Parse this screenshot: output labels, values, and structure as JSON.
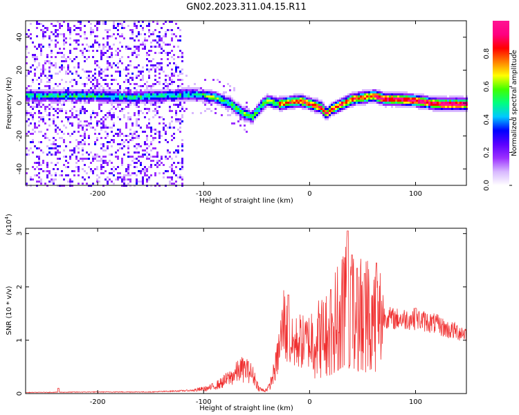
{
  "title": "GN02.2023.311.04.15.R11",
  "colors": {
    "snr_line": "#f03030",
    "axis": "#000000",
    "colormap": [
      "#ffffff",
      "#d8b8ff",
      "#9b30ff",
      "#5a00ff",
      "#0000ff",
      "#00c8ff",
      "#00ff80",
      "#40ff00",
      "#ffff00",
      "#ff8000",
      "#ff0000",
      "#ff0080",
      "#ff1493"
    ]
  },
  "chart_data": [
    {
      "type": "heatmap",
      "name": "spectrogram",
      "xlabel": "Height of straight line (km)",
      "ylabel": "Frequency (Hz)",
      "xlim": [
        -268,
        148
      ],
      "ylim": [
        -50,
        50
      ],
      "xticks": [
        -200,
        -100,
        0,
        100
      ],
      "yticks": [
        40,
        20,
        0,
        -20,
        -40
      ],
      "grid": false,
      "description_curve": {
        "x": [
          -260,
          -230,
          -200,
          -170,
          -140,
          -110,
          -90,
          -75,
          -65,
          -55,
          -50,
          -45,
          -40,
          -30,
          -20,
          -10,
          0,
          10,
          15,
          20,
          30,
          40,
          50,
          60,
          70,
          80,
          100,
          120,
          148
        ],
        "y": [
          5,
          5,
          5,
          4,
          5,
          6,
          4,
          0,
          -5,
          -8,
          -4,
          0,
          2,
          0,
          1,
          2,
          0,
          -2,
          -6,
          -3,
          0,
          3,
          4,
          5,
          3,
          3,
          2,
          0,
          0
        ]
      },
      "colorbar": {
        "label": "Normalized spectral amplitude",
        "ticks": [
          "0.0",
          "0.2",
          "0.4",
          "0.6",
          "0.8"
        ],
        "range": [
          0,
          1
        ]
      }
    },
    {
      "type": "line",
      "name": "snr",
      "xlabel": "Height of straight line (km)",
      "ylabel": "SNR (10 * v/v)",
      "multiplier_label": "(x10",
      "multiplier_exp": "4",
      "xlim": [
        -268,
        148
      ],
      "ylim": [
        0,
        3.1
      ],
      "xticks": [
        -200,
        -100,
        0,
        100
      ],
      "yticks": [
        0,
        1,
        2,
        3
      ],
      "envelope": {
        "x": [
          -268,
          -200,
          -150,
          -110,
          -95,
          -85,
          -75,
          -65,
          -58,
          -52,
          -48,
          -43,
          -38,
          -32,
          -28,
          -24,
          -20,
          -15,
          -10,
          -5,
          0,
          10,
          20,
          30,
          35,
          40,
          45,
          50,
          55,
          60,
          70,
          80,
          90,
          100,
          110,
          120,
          130,
          148
        ],
        "y": [
          0.02,
          0.03,
          0.03,
          0.06,
          0.1,
          0.18,
          0.3,
          0.45,
          0.45,
          0.3,
          0.1,
          0.05,
          0.12,
          0.5,
          0.9,
          1.4,
          0.95,
          0.9,
          1.0,
          0.95,
          1.0,
          1.05,
          1.15,
          1.6,
          1.9,
          1.6,
          1.5,
          1.5,
          1.5,
          1.45,
          1.45,
          1.4,
          1.4,
          1.4,
          1.35,
          1.3,
          1.2,
          1.13
        ]
      },
      "peaks": [
        {
          "x": -237,
          "y": 0.1
        },
        {
          "x": -58,
          "y": 0.6
        },
        {
          "x": -20,
          "y": 1.85
        },
        {
          "x": 20,
          "y": 1.95
        },
        {
          "x": 33,
          "y": 2.55
        },
        {
          "x": 36,
          "y": 3.05
        },
        {
          "x": 40,
          "y": 2.6
        },
        {
          "x": 45,
          "y": 2.35
        },
        {
          "x": 52,
          "y": 2.25
        },
        {
          "x": 63,
          "y": 2.45
        },
        {
          "x": 100,
          "y": 1.6
        }
      ]
    }
  ]
}
